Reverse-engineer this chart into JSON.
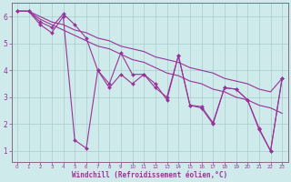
{
  "xlabel": "Windchill (Refroidissement éolien,°C)",
  "bg_color": "#ceeaea",
  "grid_color": "#a8cccc",
  "line_color": "#993399",
  "spine_color": "#886688",
  "xlim": [
    -0.5,
    23.5
  ],
  "ylim": [
    0.6,
    6.5
  ],
  "yticks": [
    1,
    2,
    3,
    4,
    5,
    6
  ],
  "xticks": [
    0,
    1,
    2,
    3,
    4,
    5,
    6,
    7,
    8,
    9,
    10,
    11,
    12,
    13,
    14,
    15,
    16,
    17,
    18,
    19,
    20,
    21,
    22,
    23
  ],
  "line1_x": [
    0,
    1,
    2,
    3,
    4,
    5,
    6,
    7,
    8,
    9,
    10,
    11,
    12,
    13,
    14,
    15,
    16,
    17,
    18,
    19,
    20,
    21,
    22,
    23
  ],
  "line1_y": [
    6.2,
    6.2,
    5.9,
    5.7,
    5.5,
    5.3,
    5.1,
    4.9,
    4.8,
    4.6,
    4.4,
    4.3,
    4.1,
    3.9,
    3.8,
    3.6,
    3.5,
    3.3,
    3.2,
    3.0,
    2.9,
    2.7,
    2.6,
    2.4
  ],
  "line2_x": [
    0,
    1,
    2,
    3,
    4,
    5,
    6,
    7,
    8,
    9,
    10,
    11,
    12,
    13,
    14,
    15,
    16,
    17,
    18,
    19,
    20,
    21,
    22,
    23
  ],
  "line2_y": [
    6.2,
    6.2,
    6.0,
    5.8,
    5.7,
    5.5,
    5.4,
    5.2,
    5.1,
    4.9,
    4.8,
    4.7,
    4.5,
    4.4,
    4.3,
    4.1,
    4.0,
    3.9,
    3.7,
    3.6,
    3.5,
    3.3,
    3.2,
    3.7
  ],
  "line3_x": [
    0,
    1,
    2,
    3,
    4,
    5,
    6,
    7,
    8,
    9,
    10,
    11,
    12,
    13,
    14,
    15,
    16,
    17,
    18,
    19,
    20,
    21,
    22,
    23
  ],
  "line3_y": [
    6.2,
    6.2,
    5.8,
    5.6,
    6.1,
    5.7,
    5.2,
    4.0,
    3.5,
    4.65,
    3.85,
    3.85,
    3.5,
    2.9,
    4.55,
    2.7,
    2.65,
    2.05,
    3.35,
    3.3,
    2.9,
    1.8,
    1.0,
    3.7
  ],
  "line4_x": [
    0,
    1,
    2,
    3,
    4,
    5,
    6,
    7,
    8,
    9,
    10,
    11,
    12,
    13,
    14,
    15,
    16,
    17,
    18,
    19,
    20,
    21,
    22,
    23
  ],
  "line4_y": [
    6.2,
    6.2,
    5.7,
    5.4,
    6.0,
    1.4,
    1.1,
    4.0,
    3.35,
    3.85,
    3.5,
    3.85,
    3.35,
    3.0,
    4.55,
    2.7,
    2.6,
    2.0,
    3.35,
    3.3,
    2.9,
    1.85,
    1.0,
    3.7
  ]
}
